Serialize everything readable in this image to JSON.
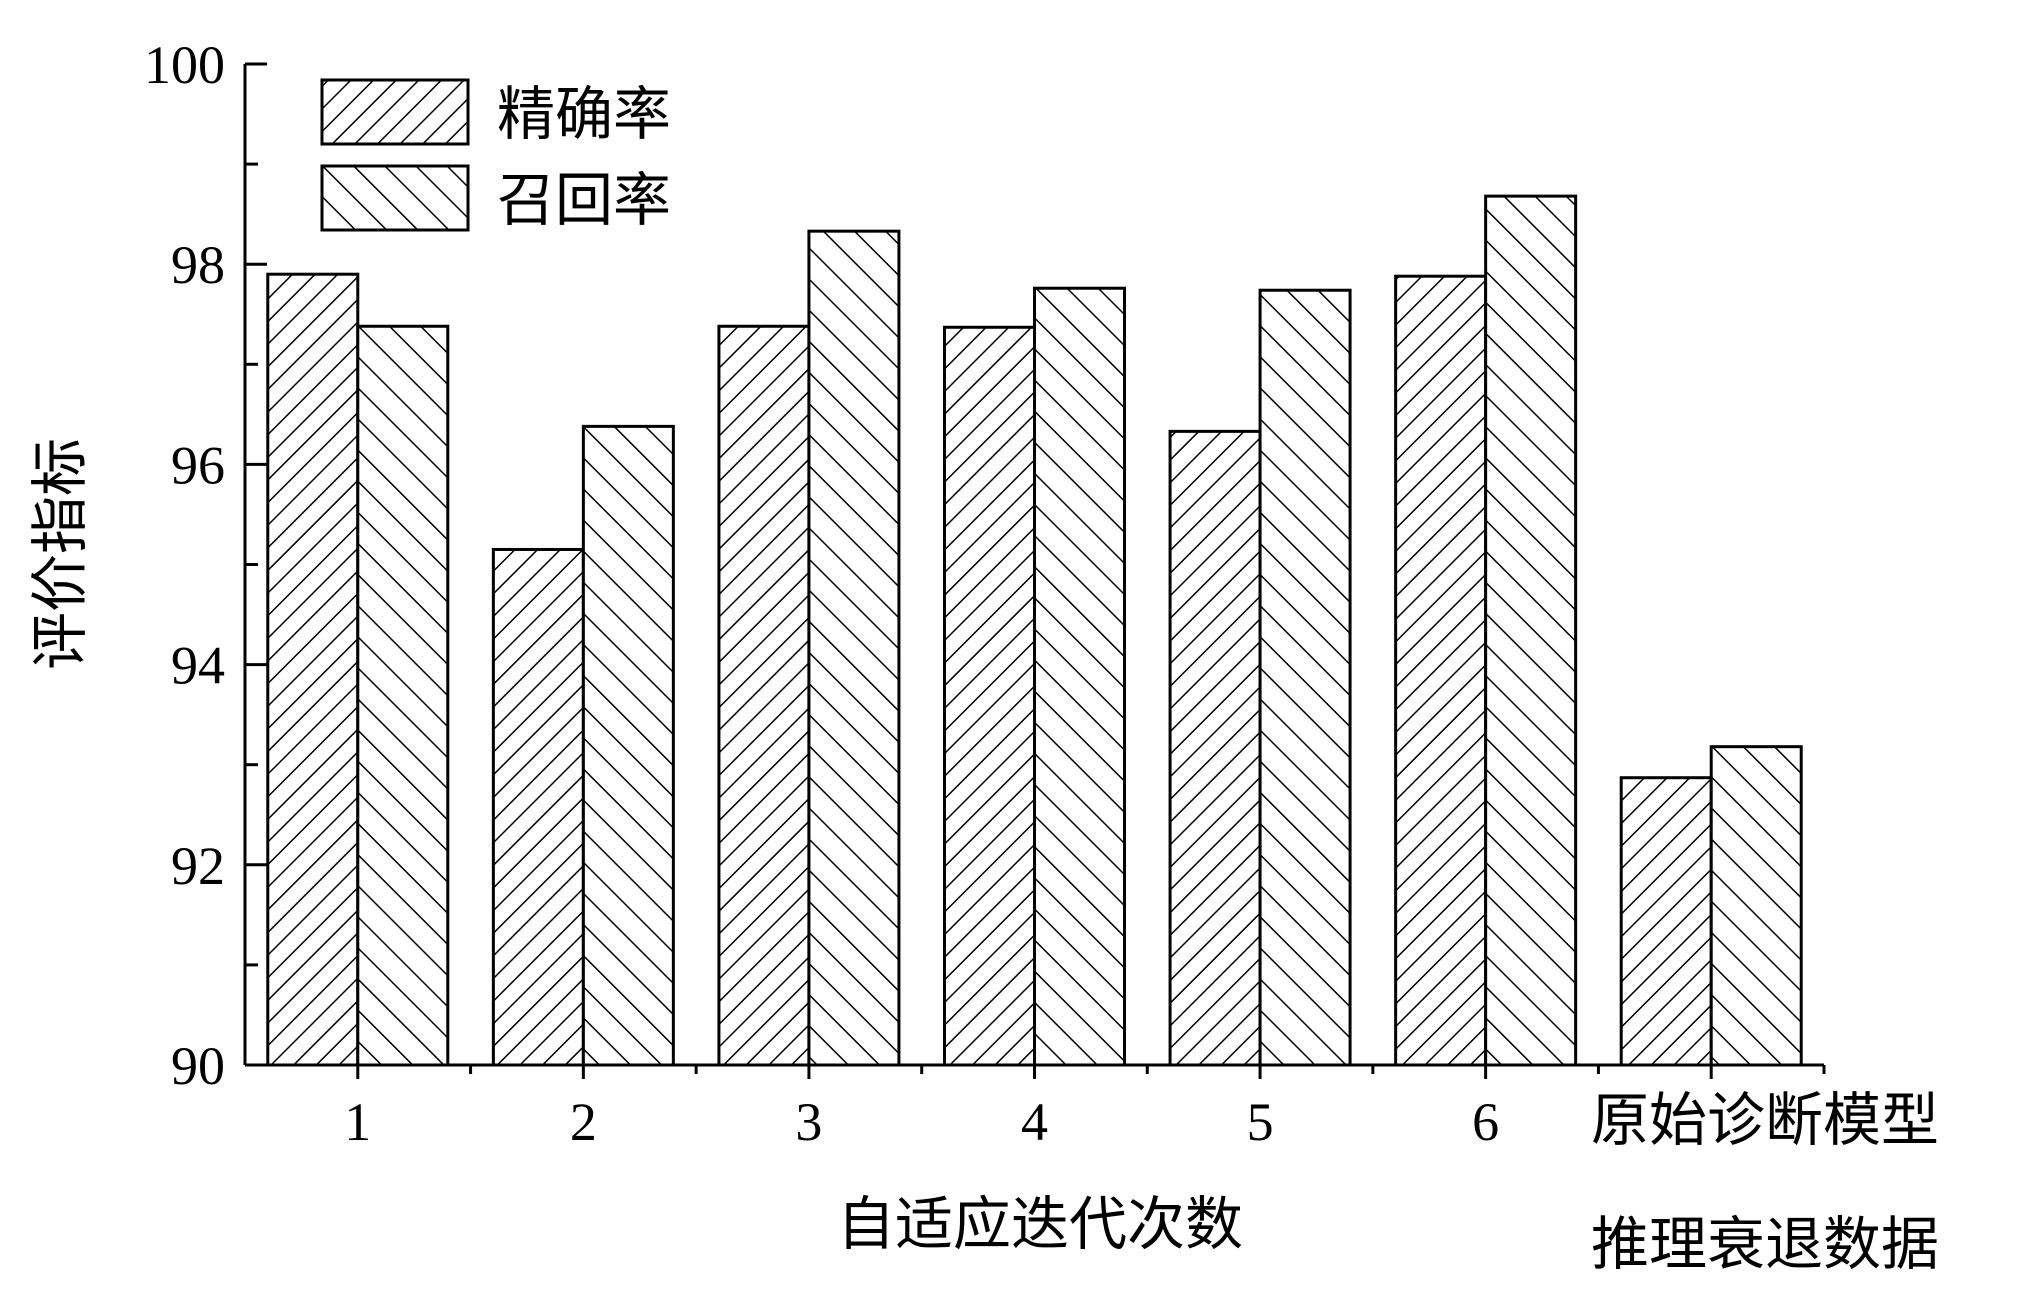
{
  "chart_data": {
    "type": "bar",
    "title": "",
    "ylabel": "评价指标",
    "xlabel": "自适应迭代次数",
    "ylim": [
      90,
      100
    ],
    "yticks": [
      "90",
      "92",
      "94",
      "96",
      "98",
      "100"
    ],
    "categories": [
      "1",
      "2",
      "3",
      "4",
      "5",
      "6",
      "原始诊断模型"
    ],
    "extra_label": "推理衰退数据",
    "series": [
      {
        "name": "精确率",
        "values": [
          97.9,
          95.15,
          97.38,
          97.37,
          96.33,
          97.88,
          92.87
        ]
      },
      {
        "name": "召回率",
        "values": [
          97.38,
          96.38,
          98.33,
          97.76,
          97.74,
          98.68,
          93.18
        ]
      }
    ],
    "legend_position": "top-left",
    "grid": false
  }
}
